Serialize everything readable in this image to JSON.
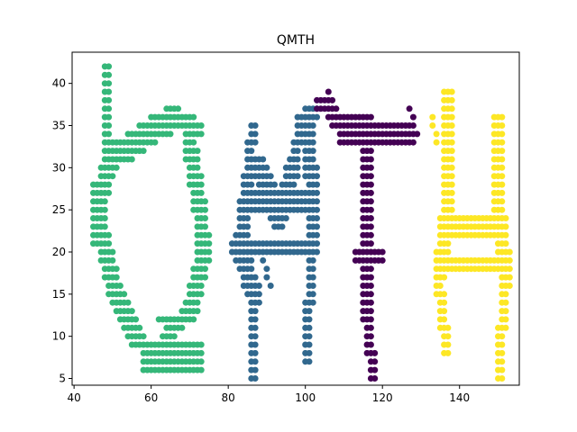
{
  "chart_data": {
    "type": "scatter",
    "title": "QMTH",
    "xlabel": "",
    "ylabel": "",
    "xlim": [
      39.5,
      155.5
    ],
    "ylim": [
      4.2,
      43.7
    ],
    "xticks": [
      40,
      60,
      80,
      100,
      120,
      140
    ],
    "yticks": [
      5,
      10,
      15,
      20,
      25,
      30,
      35,
      40
    ],
    "grid": false,
    "legend": "none",
    "marker_size": 6,
    "series": [
      {
        "color": "#35b779",
        "strokes": [
          {
            "x1": 49,
            "y1": 42,
            "x2": 49,
            "y2": 31,
            "w": 2
          },
          {
            "x1": 46,
            "y1": 28,
            "x2": 46,
            "y2": 22,
            "w": 2
          },
          {
            "x1": 49,
            "y1": 31,
            "x2": 56,
            "y2": 33,
            "w": 3
          },
          {
            "x1": 56,
            "y1": 33,
            "x2": 66,
            "y2": 36,
            "w": 3
          },
          {
            "x1": 66,
            "y1": 37,
            "x2": 73,
            "y2": 35,
            "w": 2
          },
          {
            "x1": 49,
            "y1": 31,
            "x2": 46,
            "y2": 25,
            "w": 3
          },
          {
            "x1": 46,
            "y1": 25,
            "x2": 50,
            "y2": 16,
            "w": 3
          },
          {
            "x1": 50,
            "y1": 16,
            "x2": 56,
            "y2": 10,
            "w": 3
          },
          {
            "x1": 56,
            "y1": 10,
            "x2": 64,
            "y2": 8,
            "w": 2
          },
          {
            "x1": 59,
            "y1": 7,
            "x2": 73,
            "y2": 7,
            "w": 2
          },
          {
            "x1": 62,
            "y1": 9,
            "x2": 73,
            "y2": 9,
            "w": 2
          },
          {
            "x1": 70,
            "y1": 33,
            "x2": 72,
            "y2": 27,
            "w": 3
          },
          {
            "x1": 72,
            "y1": 27,
            "x2": 74,
            "y2": 20,
            "w": 3
          },
          {
            "x1": 74,
            "y1": 20,
            "x2": 70,
            "y2": 13,
            "w": 3
          },
          {
            "x1": 70,
            "y1": 13,
            "x2": 64,
            "y2": 10,
            "w": 2
          },
          {
            "x1": 69,
            "y1": 8,
            "x2": 72,
            "y2": 6,
            "w": 1
          },
          {
            "x1": 62,
            "y1": 12,
            "x2": 67,
            "y2": 12,
            "w": 1
          }
        ]
      },
      {
        "color": "#31688e",
        "strokes": [
          {
            "x1": 87,
            "y1": 35,
            "x2": 85,
            "y2": 28,
            "w": 2
          },
          {
            "x1": 85,
            "y1": 28,
            "x2": 83,
            "y2": 20,
            "w": 3
          },
          {
            "x1": 83,
            "y1": 20,
            "x2": 87,
            "y2": 15,
            "w": 3
          },
          {
            "x1": 87,
            "y1": 15,
            "x2": 87,
            "y2": 6,
            "w": 2
          },
          {
            "x1": 85,
            "y1": 26,
            "x2": 102,
            "y2": 26,
            "w": 3
          },
          {
            "x1": 82,
            "y1": 21,
            "x2": 103,
            "y2": 21,
            "w": 2
          },
          {
            "x1": 88,
            "y1": 30,
            "x2": 93,
            "y2": 24,
            "w": 3
          },
          {
            "x1": 93,
            "y1": 24,
            "x2": 97,
            "y2": 30,
            "w": 3
          },
          {
            "x1": 97,
            "y1": 31,
            "x2": 101,
            "y2": 37,
            "w": 2
          },
          {
            "x1": 99,
            "y1": 36,
            "x2": 103,
            "y2": 37,
            "w": 2
          },
          {
            "x1": 101,
            "y1": 36,
            "x2": 102,
            "y2": 22,
            "w": 3
          },
          {
            "x1": 102,
            "y1": 22,
            "x2": 101,
            "y2": 8,
            "w": 2
          },
          {
            "x1": 89,
            "y1": 19,
            "x2": 91,
            "y2": 16,
            "w": 1
          }
        ]
      },
      {
        "color": "#440154",
        "strokes": [
          {
            "x1": 104,
            "y1": 38,
            "x2": 108,
            "y2": 37,
            "w": 2
          },
          {
            "x1": 108,
            "y1": 36,
            "x2": 127,
            "y2": 35,
            "w": 2
          },
          {
            "x1": 110,
            "y1": 34,
            "x2": 128,
            "y2": 34,
            "w": 2
          },
          {
            "x1": 127,
            "y1": 37,
            "x2": 129,
            "y2": 34,
            "w": 1
          },
          {
            "x1": 106,
            "y1": 39,
            "x2": 107,
            "y2": 38,
            "w": 1
          },
          {
            "x1": 116,
            "y1": 32,
            "x2": 116,
            "y2": 24,
            "w": 3
          },
          {
            "x1": 116,
            "y1": 24,
            "x2": 116,
            "y2": 14,
            "w": 3
          },
          {
            "x1": 116,
            "y1": 14,
            "x2": 118,
            "y2": 6,
            "w": 2
          },
          {
            "x1": 114,
            "y1": 20,
            "x2": 120,
            "y2": 20,
            "w": 2
          }
        ]
      },
      {
        "color": "#fde725",
        "strokes": [
          {
            "x1": 137,
            "y1": 38,
            "x2": 137,
            "y2": 26,
            "w": 3
          },
          {
            "x1": 137,
            "y1": 26,
            "x2": 135,
            "y2": 18,
            "w": 3
          },
          {
            "x1": 135,
            "y1": 18,
            "x2": 137,
            "y2": 9,
            "w": 2
          },
          {
            "x1": 136,
            "y1": 23,
            "x2": 151,
            "y2": 23,
            "w": 3
          },
          {
            "x1": 136,
            "y1": 19,
            "x2": 151,
            "y2": 19,
            "w": 2
          },
          {
            "x1": 150,
            "y1": 35,
            "x2": 150,
            "y2": 25,
            "w": 3
          },
          {
            "x1": 150,
            "y1": 25,
            "x2": 152,
            "y2": 17,
            "w": 3
          },
          {
            "x1": 152,
            "y1": 17,
            "x2": 151,
            "y2": 6,
            "w": 2
          },
          {
            "x1": 133,
            "y1": 36,
            "x2": 134,
            "y2": 33,
            "w": 1
          }
        ]
      }
    ]
  }
}
